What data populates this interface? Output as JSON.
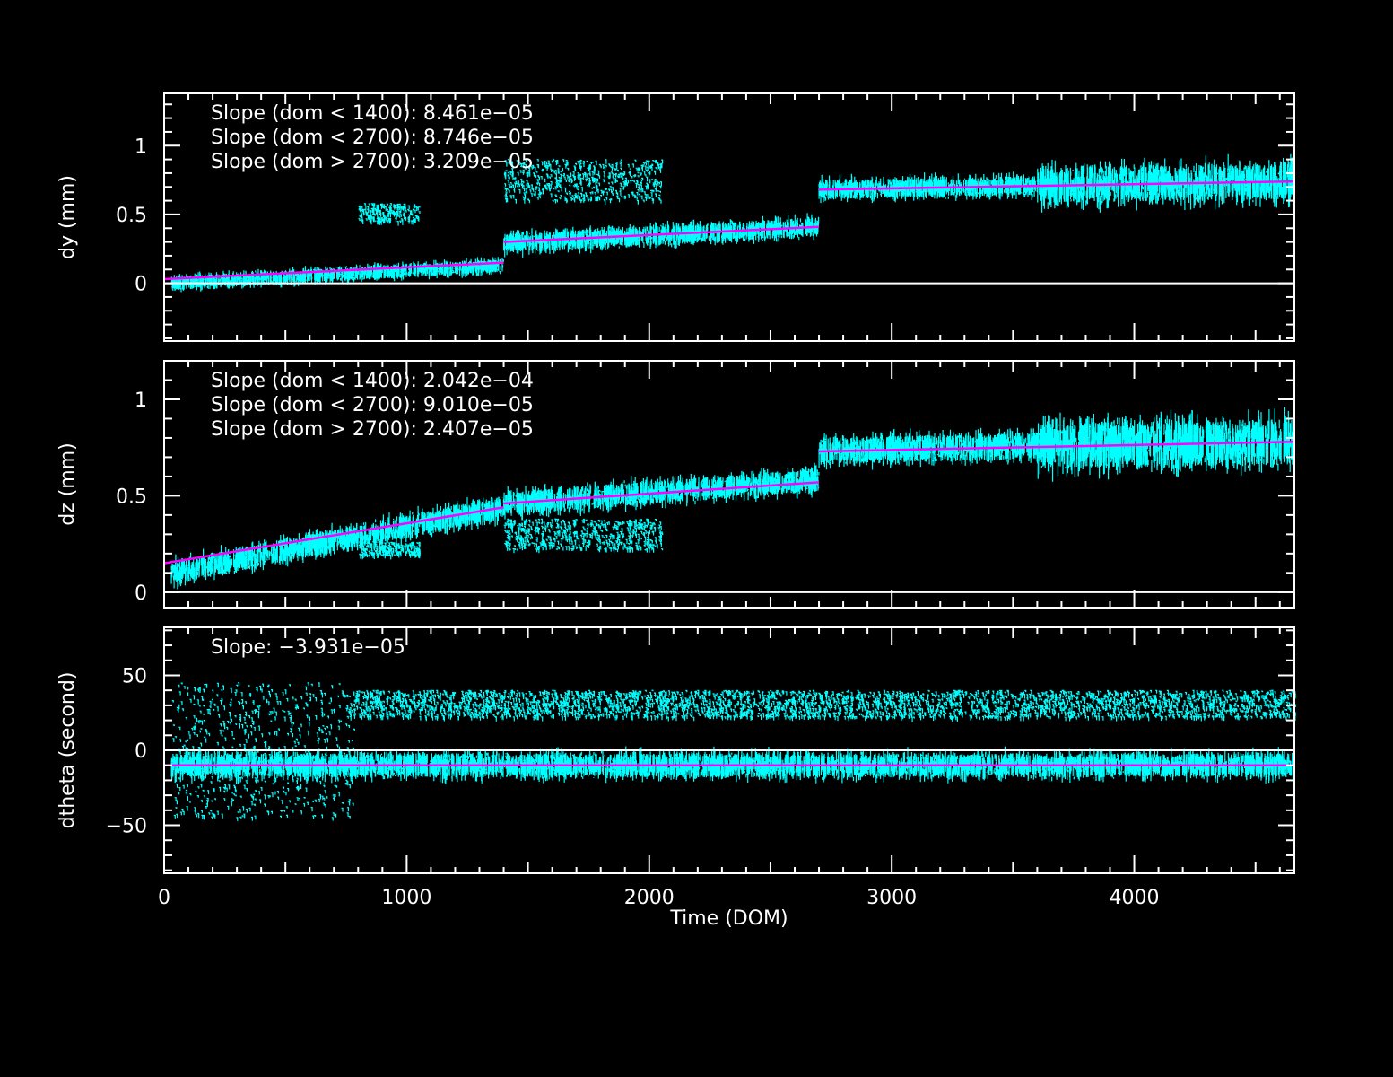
{
  "figure": {
    "xlabel": "Time (DOM)",
    "x_ticks": [
      "0",
      "1000",
      "2000",
      "3000",
      "4000"
    ],
    "xlim": [
      0,
      4660
    ]
  },
  "colors": {
    "background": "#000000",
    "axes": "#ffffff",
    "data": "#00ffff",
    "fit": "#ff00ff"
  },
  "chart_data": [
    {
      "type": "scatter",
      "ylabel": "dy (mm)",
      "ylim": [
        -0.42,
        1.38
      ],
      "y_ticks": [
        0,
        0.5,
        1
      ],
      "y_tick_labels": [
        "0",
        "0.5",
        "1"
      ],
      "annotations": [
        "Slope (dom < 1400): 8.461e−05",
        "Slope (dom < 2700): 8.746e−05",
        "Slope (dom > 2700): 3.209e−05"
      ],
      "fit_segments": [
        {
          "x": [
            0,
            1400
          ],
          "y": [
            0.03,
            0.15
          ]
        },
        {
          "x": [
            1400,
            2700
          ],
          "y": [
            0.3,
            0.41
          ]
        },
        {
          "x": [
            2700,
            4660
          ],
          "y": [
            0.68,
            0.74
          ]
        }
      ],
      "bands": [
        {
          "x": [
            30,
            1400
          ],
          "y0": [
            0.0,
            0.13
          ],
          "spread": 0.05
        },
        {
          "x": [
            1400,
            2700
          ],
          "y0": [
            0.29,
            0.41
          ],
          "spread": 0.07
        },
        {
          "x": [
            2700,
            3600
          ],
          "y0": [
            0.68,
            0.71
          ],
          "spread": 0.07
        },
        {
          "x": [
            3600,
            4660
          ],
          "y0": [
            0.71,
            0.74
          ],
          "spread": 0.13
        }
      ],
      "clusters": [
        {
          "x": [
            800,
            1050
          ],
          "y": [
            0.45,
            0.58
          ]
        },
        {
          "x": [
            1400,
            2050
          ],
          "y": [
            0.6,
            0.9
          ]
        }
      ]
    },
    {
      "type": "scatter",
      "ylabel": "dz (mm)",
      "ylim": [
        -0.08,
        1.2
      ],
      "y_ticks": [
        0,
        0.5,
        1
      ],
      "y_tick_labels": [
        "0",
        "0.5",
        "1"
      ],
      "annotations": [
        "Slope (dom < 1400): 2.042e−04",
        "Slope (dom < 2700): 9.010e−05",
        "Slope (dom > 2700): 2.407e−05"
      ],
      "fit_segments": [
        {
          "x": [
            0,
            1400
          ],
          "y": [
            0.15,
            0.44
          ]
        },
        {
          "x": [
            1400,
            2700
          ],
          "y": [
            0.46,
            0.57
          ]
        },
        {
          "x": [
            2700,
            4660
          ],
          "y": [
            0.73,
            0.78
          ]
        }
      ],
      "bands": [
        {
          "x": [
            30,
            1400
          ],
          "y0": [
            0.1,
            0.44
          ],
          "spread": 0.06
        },
        {
          "x": [
            1400,
            2700
          ],
          "y0": [
            0.46,
            0.58
          ],
          "spread": 0.06
        },
        {
          "x": [
            2700,
            3600
          ],
          "y0": [
            0.73,
            0.76
          ],
          "spread": 0.07
        },
        {
          "x": [
            3600,
            4660
          ],
          "y0": [
            0.76,
            0.78
          ],
          "spread": 0.12
        }
      ],
      "clusters": [
        {
          "x": [
            800,
            1050
          ],
          "y": [
            0.19,
            0.26
          ]
        },
        {
          "x": [
            1400,
            2050
          ],
          "y": [
            0.22,
            0.38
          ]
        }
      ]
    },
    {
      "type": "scatter",
      "ylabel": "dtheta (second)",
      "ylim": [
        -82,
        82
      ],
      "y_ticks": [
        -50,
        0,
        50
      ],
      "y_tick_labels": [
        "−50",
        "0",
        "50"
      ],
      "annotations": [
        "Slope: −3.931e−05"
      ],
      "fit_segments": [
        {
          "x": [
            0,
            4660
          ],
          "y": [
            -10,
            -10
          ]
        }
      ],
      "bands": [
        {
          "x": [
            30,
            4660
          ],
          "y0": [
            -10,
            -10
          ],
          "spread": 8
        }
      ],
      "clusters": [
        {
          "x": [
            30,
            780
          ],
          "y": [
            -45,
            45
          ]
        },
        {
          "x": [
            780,
            4660
          ],
          "y": [
            22,
            40
          ]
        }
      ]
    }
  ]
}
